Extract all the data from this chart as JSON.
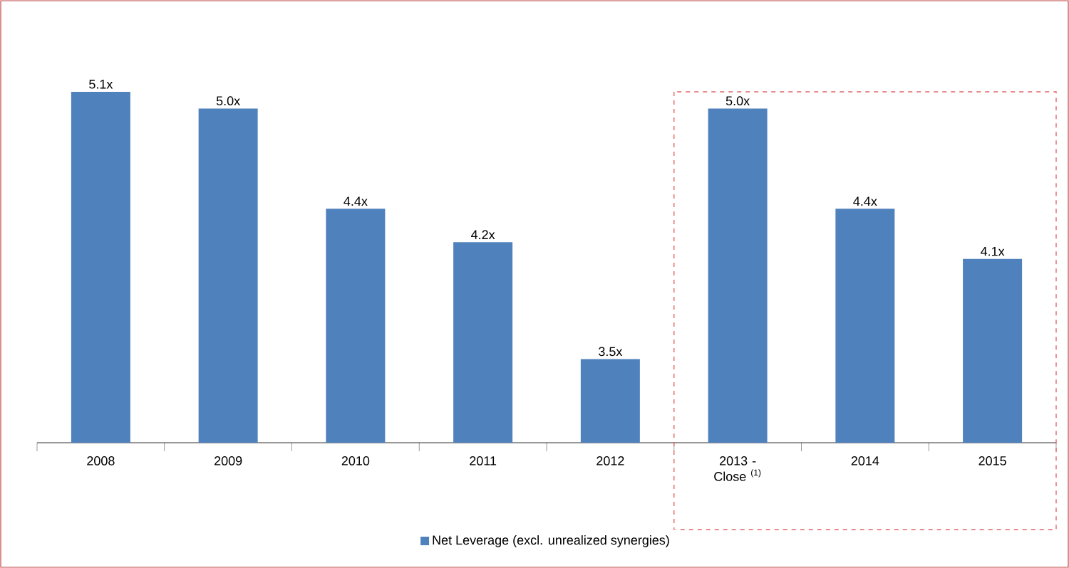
{
  "chart_data": {
    "type": "bar",
    "categories": [
      "2008",
      "2009",
      "2010",
      "2011",
      "2012",
      "2013 - Close $^{(1)}$",
      "2014",
      "2015"
    ],
    "series": [
      {
        "name": "Net Leverage (excl. unrealized synergies)",
        "color": "#4f81bd",
        "values": [
          5.1,
          5.0,
          4.4,
          4.2,
          3.5,
          5.0,
          4.4,
          4.1
        ],
        "value_labels": [
          "5.1x",
          "5.0x",
          "4.4x",
          "4.2x",
          "3.5x",
          "5.0x",
          "4.4x",
          "4.1x"
        ]
      }
    ],
    "ylim": [
      3.0,
      5.1
    ],
    "tick_labels": "x",
    "legend": "bottom"
  }
}
